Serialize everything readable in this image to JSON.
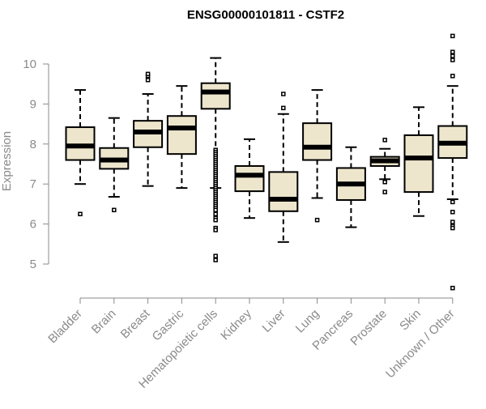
{
  "chart_data": {
    "type": "boxplot",
    "title": "ENSG00000101811 - CSTF2",
    "xlabel": "",
    "ylabel": "Expression",
    "ylim": [
      4.25,
      11.0
    ],
    "yticks": [
      5,
      6,
      7,
      8,
      9,
      10
    ],
    "grid": false,
    "colors": {
      "box_fill": "#ede6cd",
      "box_stroke": "#000000",
      "axis": "#8a8a8a",
      "tick_text": "#8a8a8a",
      "title": "#000000"
    },
    "categories": [
      "Bladder",
      "Brain",
      "Breast",
      "Gastric",
      "Hematopoietic cells",
      "Kidney",
      "Liver",
      "Lung",
      "Pancreas",
      "Prostate",
      "Skin",
      "Unknown / Other"
    ],
    "boxes": [
      {
        "name": "Bladder",
        "whisker_low": 7.0,
        "q1": 7.6,
        "median": 7.95,
        "q3": 8.42,
        "whisker_high": 9.35,
        "outliers": [
          6.25
        ]
      },
      {
        "name": "Brain",
        "whisker_low": 6.68,
        "q1": 7.38,
        "median": 7.6,
        "q3": 7.9,
        "whisker_high": 8.65,
        "outliers": [
          6.35
        ]
      },
      {
        "name": "Breast",
        "whisker_low": 6.95,
        "q1": 7.92,
        "median": 8.3,
        "q3": 8.58,
        "whisker_high": 9.25,
        "outliers": [
          9.6,
          9.7,
          9.75
        ]
      },
      {
        "name": "Gastric",
        "whisker_low": 6.9,
        "q1": 7.75,
        "median": 8.4,
        "q3": 8.7,
        "whisker_high": 9.45,
        "outliers": []
      },
      {
        "name": "Hematopoietic cells",
        "whisker_low": 6.9,
        "q1": 8.88,
        "median": 9.3,
        "q3": 9.52,
        "whisker_high": 10.15,
        "outliers": [
          7.85,
          7.8,
          7.75,
          7.7,
          7.65,
          7.6,
          7.55,
          7.5,
          7.45,
          7.4,
          7.35,
          7.3,
          7.25,
          7.2,
          7.15,
          7.1,
          7.05,
          7.0,
          6.95,
          6.9,
          6.85,
          6.8,
          6.75,
          6.7,
          6.65,
          6.6,
          6.55,
          6.5,
          6.45,
          6.4,
          6.35,
          6.25,
          6.15,
          6.1,
          5.9,
          5.85,
          5.2,
          5.1
        ]
      },
      {
        "name": "Kidney",
        "whisker_low": 6.15,
        "q1": 6.82,
        "median": 7.22,
        "q3": 7.45,
        "whisker_high": 8.12,
        "outliers": []
      },
      {
        "name": "Liver",
        "whisker_low": 5.55,
        "q1": 6.32,
        "median": 6.62,
        "q3": 7.3,
        "whisker_high": 8.75,
        "outliers": [
          8.9,
          9.25
        ]
      },
      {
        "name": "Lung",
        "whisker_low": 6.65,
        "q1": 7.6,
        "median": 7.92,
        "q3": 8.52,
        "whisker_high": 9.35,
        "outliers": [
          6.1
        ]
      },
      {
        "name": "Pancreas",
        "whisker_low": 5.92,
        "q1": 6.6,
        "median": 7.0,
        "q3": 7.4,
        "whisker_high": 7.92,
        "outliers": []
      },
      {
        "name": "Prostate",
        "whisker_low": 7.12,
        "q1": 7.45,
        "median": 7.58,
        "q3": 7.68,
        "whisker_high": 7.88,
        "outliers": [
          8.1,
          7.05,
          6.8
        ]
      },
      {
        "name": "Skin",
        "whisker_low": 6.2,
        "q1": 6.8,
        "median": 7.65,
        "q3": 8.22,
        "whisker_high": 8.92,
        "outliers": []
      },
      {
        "name": "Unknown / Other",
        "whisker_low": 6.62,
        "q1": 7.65,
        "median": 8.02,
        "q3": 8.45,
        "whisker_high": 9.45,
        "outliers": [
          10.7,
          10.3,
          10.2,
          10.1,
          9.7,
          6.55,
          6.3,
          6.05,
          5.95,
          5.9,
          4.4
        ]
      }
    ]
  }
}
